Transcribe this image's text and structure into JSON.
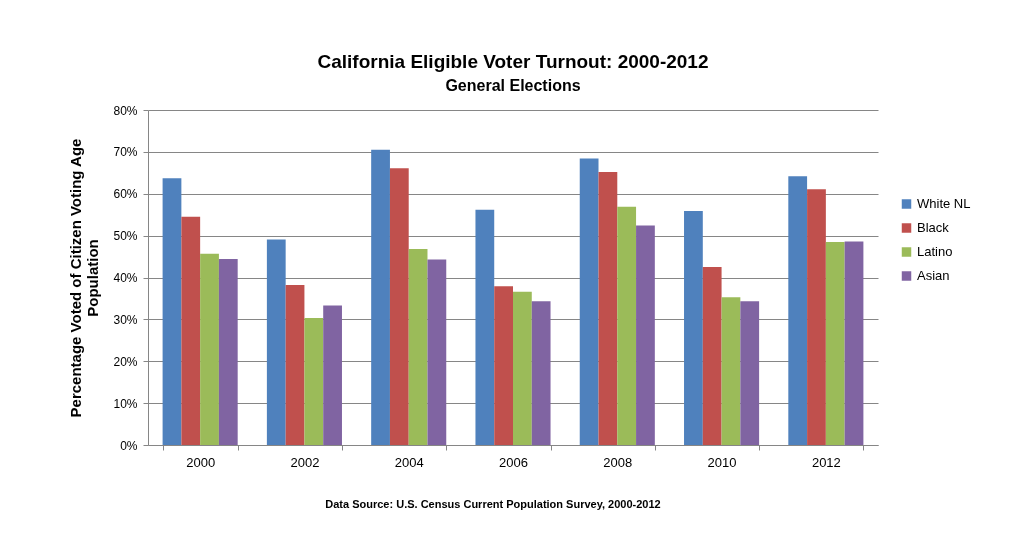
{
  "chart_data": {
    "type": "bar",
    "title": "California Eligible Voter Turnout: 2000-2012",
    "subtitle": "General Elections",
    "ylabel": "Percentage Voted of Citizen Voting Age Population",
    "annotations": [
      "Data Source: U.S. Census Current Population Survey, 2000-2012"
    ],
    "categories": [
      "2000",
      "2002",
      "2004",
      "2006",
      "2008",
      "2010",
      "2012"
    ],
    "series": [
      {
        "name": "White NL",
        "color": "#4f81bd",
        "values": [
          63.7,
          49.1,
          70.5,
          56.2,
          68.4,
          55.9,
          64.2
        ]
      },
      {
        "name": "Black",
        "color": "#c0504d",
        "values": [
          54.5,
          38.2,
          66.1,
          37.9,
          65.2,
          42.5,
          61.1
        ]
      },
      {
        "name": "Latino",
        "color": "#9bbb59",
        "values": [
          45.7,
          30.3,
          46.8,
          36.6,
          56.9,
          35.3,
          48.5
        ]
      },
      {
        "name": "Asian",
        "color": "#8064a2",
        "values": [
          44.4,
          33.3,
          44.3,
          34.3,
          52.4,
          34.3,
          48.6
        ]
      }
    ],
    "ylim": [
      0,
      80
    ],
    "yticks": [
      {
        "value": 0,
        "label": "0%"
      },
      {
        "value": 10,
        "label": "10%"
      },
      {
        "value": 20,
        "label": "20%"
      },
      {
        "value": 30,
        "label": "30%"
      },
      {
        "value": 40,
        "label": "40%"
      },
      {
        "value": 50,
        "label": "50%"
      },
      {
        "value": 60,
        "label": "60%"
      },
      {
        "value": 70,
        "label": "70%"
      },
      {
        "value": 80,
        "label": "80%"
      }
    ],
    "grid": "y",
    "legend": "right"
  }
}
